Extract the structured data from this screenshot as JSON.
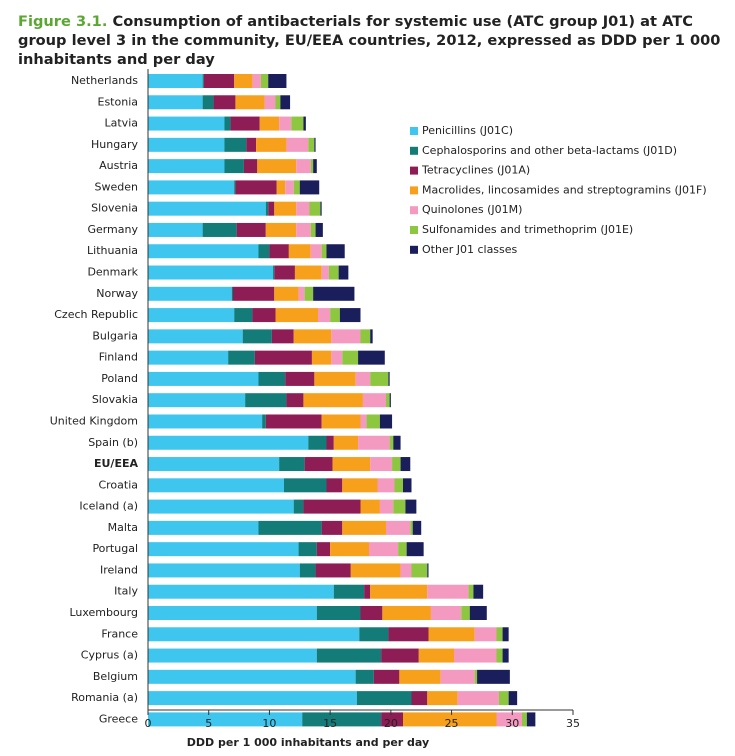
{
  "chart_data": {
    "type": "stacked-bar-horizontal",
    "figure_label": "Figure 3.1.",
    "title": "Consumption of antibacterials for systemic use (ATC group J01) at ATC group level 3 in the community, EU/EEA countries, 2012, expressed as DDD per 1 000 inhabitants and per day",
    "x_label": "DDD per 1 000 inhabitants and per day",
    "categories": [
      "Netherlands",
      "Estonia",
      "Latvia",
      "Hungary",
      "Austria",
      "Sweden",
      "Slovenia",
      "Germany",
      "Lithuania",
      "Denmark",
      "Norway",
      "Czech Republic",
      "Bulgaria",
      "Finland",
      "Poland",
      "Slovakia",
      "United Kingdom",
      "Spain (b)",
      "EU/EEA",
      "Croatia",
      "Iceland (a)",
      "Malta",
      "Portugal",
      "Ireland",
      "Italy",
      "Luxembourg",
      "France",
      "Cyprus (a)",
      "Belgium",
      "Romania (a)",
      "Greece"
    ],
    "series": [
      {
        "name": "Penicillins (J01C)",
        "color": "#3ec6ef",
        "values": [
          4.5,
          4.5,
          6.3,
          6.3,
          6.3,
          7.1,
          9.7,
          4.5,
          9.1,
          10.3,
          6.9,
          7.1,
          7.8,
          6.6,
          9.1,
          8.0,
          9.4,
          13.2,
          10.8,
          11.2,
          12.0,
          9.1,
          12.4,
          12.5,
          15.3,
          13.9,
          17.4,
          13.9,
          17.1,
          17.2,
          12.7
        ]
      },
      {
        "name": "Cephalosporins and other beta-lactams (J01D)",
        "color": "#137b78",
        "values": [
          0.1,
          0.9,
          0.5,
          1.8,
          1.6,
          0.1,
          0.2,
          2.8,
          0.9,
          0.1,
          0.1,
          1.5,
          2.4,
          2.2,
          2.2,
          3.4,
          0.3,
          1.5,
          2.1,
          3.5,
          0.8,
          5.2,
          1.5,
          1.3,
          2.5,
          3.6,
          2.4,
          5.3,
          1.5,
          4.5,
          6.5
        ]
      },
      {
        "name": "Tetracyclines (J01A)",
        "color": "#8e1c55",
        "values": [
          2.5,
          1.8,
          2.4,
          0.8,
          1.1,
          3.4,
          0.5,
          2.4,
          1.6,
          1.7,
          3.4,
          1.9,
          1.8,
          4.7,
          2.4,
          1.4,
          4.6,
          0.6,
          2.3,
          1.3,
          4.7,
          1.7,
          1.1,
          2.9,
          0.5,
          1.8,
          3.3,
          3.1,
          2.1,
          1.3,
          1.8
        ]
      },
      {
        "name": "Macrolides, lincosamides and streptogramins (J01F)",
        "color": "#f7a01c",
        "values": [
          1.5,
          2.4,
          1.6,
          2.5,
          3.2,
          0.7,
          1.8,
          2.5,
          1.8,
          2.2,
          2.0,
          3.5,
          3.1,
          1.6,
          3.4,
          4.9,
          3.2,
          2.0,
          3.1,
          2.9,
          1.6,
          3.6,
          3.2,
          4.1,
          4.7,
          4.0,
          3.8,
          2.9,
          3.4,
          2.5,
          7.7
        ]
      },
      {
        "name": "Quinolones (J01M)",
        "color": "#f49ac1",
        "values": [
          0.7,
          0.9,
          1.0,
          1.8,
          1.2,
          0.7,
          1.1,
          1.2,
          0.9,
          0.6,
          0.5,
          1.0,
          2.4,
          0.9,
          1.2,
          1.9,
          0.5,
          2.6,
          1.8,
          1.4,
          1.1,
          2.0,
          2.4,
          0.9,
          3.4,
          2.5,
          1.8,
          3.5,
          2.8,
          3.4,
          2.1
        ]
      },
      {
        "name": "Sulfonamides and trimethoprim (J01E)",
        "color": "#8dc63f",
        "values": [
          0.6,
          0.4,
          1.0,
          0.5,
          0.2,
          0.5,
          0.9,
          0.4,
          0.4,
          0.8,
          0.7,
          0.8,
          0.8,
          1.3,
          1.5,
          0.3,
          1.1,
          0.3,
          0.7,
          0.7,
          1.0,
          0.2,
          0.7,
          1.3,
          0.4,
          0.7,
          0.5,
          0.5,
          0.2,
          0.8,
          0.4
        ]
      },
      {
        "name": "Other J01 classes",
        "color": "#1a1f5c",
        "values": [
          1.5,
          0.8,
          0.2,
          0.1,
          0.3,
          1.6,
          0.1,
          0.6,
          1.5,
          0.8,
          3.4,
          1.7,
          0.2,
          2.2,
          0.1,
          0.1,
          1.0,
          0.6,
          0.8,
          0.7,
          0.9,
          0.7,
          1.4,
          0.1,
          0.8,
          1.4,
          0.5,
          0.5,
          2.7,
          0.7,
          0.7
        ]
      }
    ],
    "xlim": [
      0,
      35
    ],
    "xticks": [
      0,
      5,
      10,
      15,
      20,
      25,
      30,
      35
    ]
  }
}
